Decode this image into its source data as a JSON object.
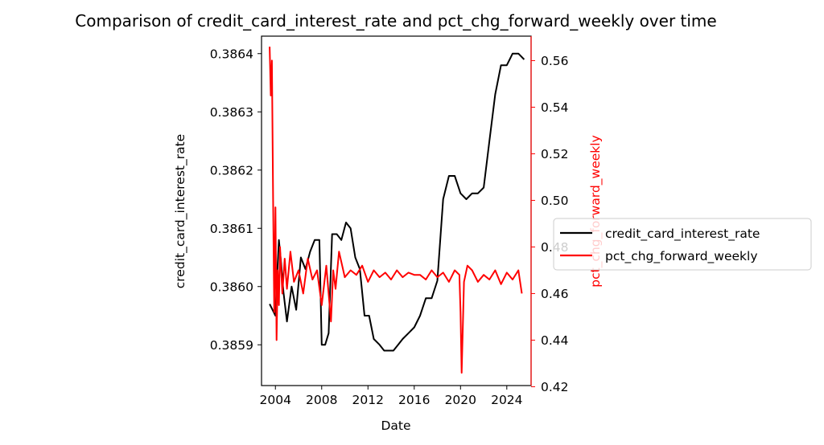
{
  "chart_data": {
    "type": "line",
    "title": "Comparison of credit_card_interest_rate and pct_chg_forward_weekly over time",
    "xlabel": "Date",
    "ylabel_left": "credit_card_interest_rate",
    "ylabel_right": "pct_chg_forward_weekly",
    "xlim": [
      2002.8,
      2026.1
    ],
    "ylim_left": [
      0.38583,
      0.38643
    ],
    "ylim_right": [
      0.4205,
      0.5705
    ],
    "x_ticks": [
      "2004",
      "2008",
      "2012",
      "2016",
      "2020",
      "2024"
    ],
    "y_left_ticks": [
      "0.3859",
      "0.3860",
      "0.3861",
      "0.3862",
      "0.3863",
      "0.3864"
    ],
    "y_right_ticks": [
      "0.42",
      "0.44",
      "0.46",
      "0.48",
      "0.50",
      "0.52",
      "0.54",
      "0.56"
    ],
    "grid": false,
    "legend_position": "right, outside",
    "series": [
      {
        "name": "credit_card_interest_rate",
        "axis": "left",
        "color": "#000000",
        "x": [
          2003.5,
          2004.0,
          2004.1,
          2004.3,
          2004.5,
          2004.7,
          2005.0,
          2005.4,
          2005.8,
          2006.2,
          2006.6,
          2007.0,
          2007.4,
          2007.8,
          2008.0,
          2008.3,
          2008.6,
          2008.9,
          2009.3,
          2009.7,
          2010.1,
          2010.5,
          2010.9,
          2011.3,
          2011.7,
          2012.1,
          2012.5,
          2013.0,
          2013.4,
          2013.8,
          2014.2,
          2014.6,
          2015.0,
          2015.5,
          2016.0,
          2016.5,
          2017.0,
          2017.5,
          2018.0,
          2018.5,
          2019.0,
          2019.5,
          2020.0,
          2020.5,
          2021.0,
          2021.5,
          2022.0,
          2022.5,
          2023.0,
          2023.5,
          2024.0,
          2024.5,
          2025.0,
          2025.5
        ],
        "values": [
          0.38597,
          0.38595,
          0.386,
          0.38608,
          0.38604,
          0.38599,
          0.38594,
          0.386,
          0.38596,
          0.38605,
          0.38603,
          0.38606,
          0.38608,
          0.38608,
          0.3859,
          0.3859,
          0.38592,
          0.38609,
          0.38609,
          0.38608,
          0.38611,
          0.3861,
          0.38605,
          0.38603,
          0.38595,
          0.38595,
          0.38591,
          0.3859,
          0.38589,
          0.38589,
          0.38589,
          0.3859,
          0.38591,
          0.38592,
          0.38593,
          0.38595,
          0.38598,
          0.38598,
          0.38601,
          0.38615,
          0.38619,
          0.38619,
          0.38616,
          0.38615,
          0.38616,
          0.38616,
          0.38617,
          0.38625,
          0.38633,
          0.38638,
          0.38638,
          0.3864,
          0.3864,
          0.38639
        ]
      },
      {
        "name": "pct_chg_forward_weekly",
        "axis": "right",
        "color": "#ff0000",
        "x": [
          2003.5,
          2003.6,
          2003.7,
          2003.8,
          2003.9,
          2004.0,
          2004.1,
          2004.2,
          2004.3,
          2004.4,
          2004.6,
          2004.8,
          2005.0,
          2005.3,
          2005.6,
          2006.0,
          2006.4,
          2006.8,
          2007.2,
          2007.6,
          2008.0,
          2008.4,
          2008.8,
          2009.0,
          2009.2,
          2009.5,
          2010.0,
          2010.5,
          2011.0,
          2011.5,
          2012.0,
          2012.5,
          2013.0,
          2013.5,
          2014.0,
          2014.5,
          2015.0,
          2015.5,
          2016.0,
          2016.5,
          2017.0,
          2017.5,
          2018.0,
          2018.5,
          2019.0,
          2019.5,
          2019.9,
          2020.0,
          2020.1,
          2020.3,
          2020.6,
          2021.0,
          2021.5,
          2022.0,
          2022.5,
          2023.0,
          2023.5,
          2024.0,
          2024.5,
          2025.0,
          2025.3
        ],
        "values": [
          0.566,
          0.545,
          0.56,
          0.5,
          0.452,
          0.497,
          0.44,
          0.47,
          0.455,
          0.48,
          0.46,
          0.475,
          0.462,
          0.478,
          0.465,
          0.47,
          0.46,
          0.475,
          0.466,
          0.47,
          0.455,
          0.472,
          0.448,
          0.47,
          0.462,
          0.478,
          0.467,
          0.47,
          0.468,
          0.472,
          0.465,
          0.47,
          0.467,
          0.469,
          0.466,
          0.47,
          0.467,
          0.469,
          0.468,
          0.468,
          0.466,
          0.47,
          0.467,
          0.469,
          0.465,
          0.47,
          0.468,
          0.452,
          0.426,
          0.465,
          0.472,
          0.47,
          0.465,
          0.468,
          0.466,
          0.47,
          0.464,
          0.469,
          0.466,
          0.47,
          0.46
        ]
      }
    ]
  }
}
